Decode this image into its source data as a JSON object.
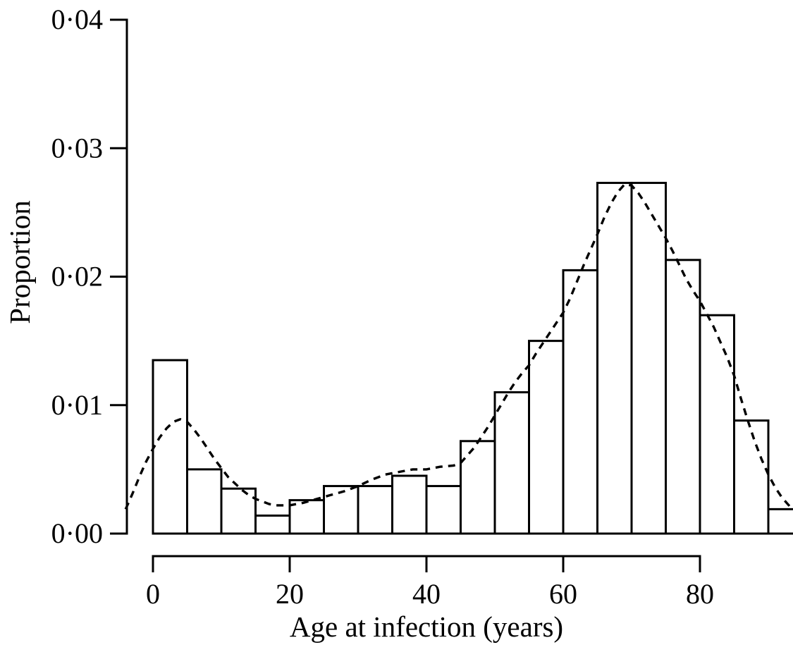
{
  "figure": {
    "background_color": "#ffffff",
    "ink_color": "#000000"
  },
  "chart_data": {
    "type": "bar",
    "subtype": "histogram_with_dashed_density_overlay",
    "title": "",
    "xlabel": "Age at infection (years)",
    "ylabel": "Proportion",
    "xlim": [
      -4,
      93.6
    ],
    "ylim": [
      0,
      0.04
    ],
    "x_ticks": [
      0,
      20,
      40,
      60,
      80
    ],
    "x_tick_labels": [
      "0",
      "20",
      "40",
      "60",
      "80"
    ],
    "y_ticks": [
      0,
      0.01,
      0.02,
      0.03,
      0.04
    ],
    "y_tick_labels": [
      "0·00",
      "0·01",
      "0·02",
      "0·03",
      "0·04"
    ],
    "grid": false,
    "legend": "none",
    "histogram": {
      "bin_width_years": 5,
      "bar_fill": "#ffffff",
      "bar_stroke": "#000000",
      "bins": [
        {
          "range": [
            0,
            5
          ],
          "proportion": 0.0135
        },
        {
          "range": [
            5,
            10
          ],
          "proportion": 0.005
        },
        {
          "range": [
            10,
            15
          ],
          "proportion": 0.0035
        },
        {
          "range": [
            15,
            20
          ],
          "proportion": 0.0014
        },
        {
          "range": [
            20,
            25
          ],
          "proportion": 0.0026
        },
        {
          "range": [
            25,
            30
          ],
          "proportion": 0.0037
        },
        {
          "range": [
            30,
            35
          ],
          "proportion": 0.0037
        },
        {
          "range": [
            35,
            40
          ],
          "proportion": 0.0045
        },
        {
          "range": [
            40,
            45
          ],
          "proportion": 0.0037
        },
        {
          "range": [
            45,
            50
          ],
          "proportion": 0.0072
        },
        {
          "range": [
            50,
            55
          ],
          "proportion": 0.011
        },
        {
          "range": [
            55,
            60
          ],
          "proportion": 0.015
        },
        {
          "range": [
            60,
            65
          ],
          "proportion": 0.0205
        },
        {
          "range": [
            65,
            70
          ],
          "proportion": 0.0273
        },
        {
          "range": [
            70,
            75
          ],
          "proportion": 0.0273
        },
        {
          "range": [
            75,
            80
          ],
          "proportion": 0.0213
        },
        {
          "range": [
            80,
            85
          ],
          "proportion": 0.017
        },
        {
          "range": [
            85,
            90
          ],
          "proportion": 0.0088
        },
        {
          "range": [
            90,
            95
          ],
          "proportion": 0.0019
        }
      ]
    },
    "density_curve": {
      "line_style": "dashed",
      "stroke": "#000000",
      "points": [
        [
          -4,
          0.0019
        ],
        [
          -3,
          0.0031
        ],
        [
          -2,
          0.0044
        ],
        [
          -1,
          0.0056
        ],
        [
          0,
          0.0066
        ],
        [
          1,
          0.0075
        ],
        [
          2,
          0.0082
        ],
        [
          3,
          0.0087
        ],
        [
          4,
          0.0089
        ],
        [
          5,
          0.0087
        ],
        [
          6,
          0.0081
        ],
        [
          7,
          0.0074
        ],
        [
          8,
          0.0066
        ],
        [
          9,
          0.0058
        ],
        [
          10,
          0.0051
        ],
        [
          11,
          0.0044
        ],
        [
          12,
          0.0039
        ],
        [
          13,
          0.0034
        ],
        [
          14,
          0.003
        ],
        [
          15,
          0.0027
        ],
        [
          16,
          0.0025
        ],
        [
          17,
          0.0023
        ],
        [
          18,
          0.0022
        ],
        [
          19,
          0.0022
        ],
        [
          20,
          0.0022
        ],
        [
          21,
          0.0023
        ],
        [
          22,
          0.0024
        ],
        [
          24,
          0.0027
        ],
        [
          26,
          0.003
        ],
        [
          28,
          0.0033
        ],
        [
          30,
          0.0037
        ],
        [
          32,
          0.0042
        ],
        [
          34,
          0.0046
        ],
        [
          36,
          0.0048
        ],
        [
          38,
          0.005
        ],
        [
          40,
          0.005
        ],
        [
          42,
          0.0052
        ],
        [
          44,
          0.0053
        ],
        [
          45,
          0.0055
        ],
        [
          46,
          0.0061
        ],
        [
          47,
          0.0067
        ],
        [
          48,
          0.0075
        ],
        [
          49,
          0.0083
        ],
        [
          50,
          0.0092
        ],
        [
          51,
          0.0101
        ],
        [
          52,
          0.011
        ],
        [
          53,
          0.0118
        ],
        [
          54,
          0.0125
        ],
        [
          55,
          0.0131
        ],
        [
          56,
          0.014
        ],
        [
          57,
          0.0148
        ],
        [
          58,
          0.0156
        ],
        [
          59,
          0.0164
        ],
        [
          60,
          0.0172
        ],
        [
          61,
          0.0183
        ],
        [
          62,
          0.0196
        ],
        [
          63,
          0.0209
        ],
        [
          64,
          0.0221
        ],
        [
          65,
          0.0233
        ],
        [
          66,
          0.0246
        ],
        [
          67,
          0.0257
        ],
        [
          68,
          0.0266
        ],
        [
          69,
          0.0272
        ],
        [
          70,
          0.0271
        ],
        [
          71,
          0.0265
        ],
        [
          72,
          0.0257
        ],
        [
          73,
          0.0248
        ],
        [
          74,
          0.0239
        ],
        [
          75,
          0.023
        ],
        [
          76,
          0.022
        ],
        [
          77,
          0.0209
        ],
        [
          78,
          0.0198
        ],
        [
          79,
          0.0189
        ],
        [
          80,
          0.0181
        ],
        [
          81,
          0.0171
        ],
        [
          82,
          0.0161
        ],
        [
          83,
          0.0149
        ],
        [
          84,
          0.0137
        ],
        [
          85,
          0.0123
        ],
        [
          86,
          0.0105
        ],
        [
          87,
          0.0088
        ],
        [
          88,
          0.0072
        ],
        [
          89,
          0.0058
        ],
        [
          90,
          0.0046
        ],
        [
          91,
          0.0036
        ],
        [
          92,
          0.0028
        ],
        [
          93,
          0.0022
        ],
        [
          93.4,
          0.0019
        ]
      ]
    }
  }
}
